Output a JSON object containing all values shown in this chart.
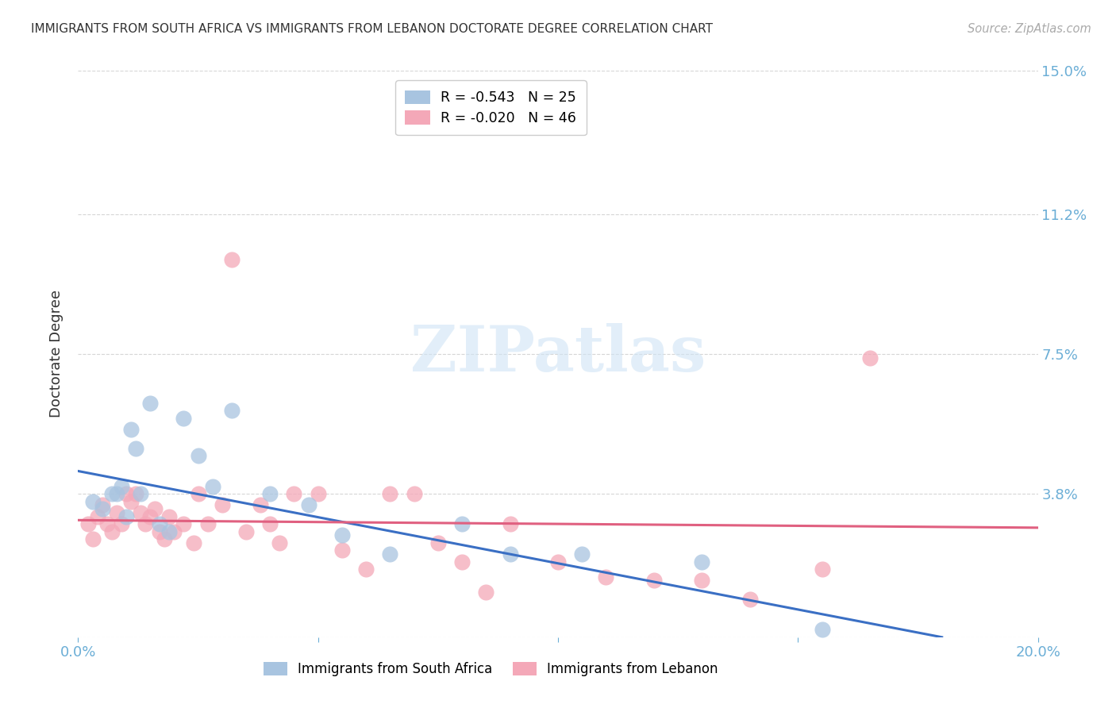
{
  "title": "IMMIGRANTS FROM SOUTH AFRICA VS IMMIGRANTS FROM LEBANON DOCTORATE DEGREE CORRELATION CHART",
  "source": "Source: ZipAtlas.com",
  "ylabel": "Doctorate Degree",
  "xlim": [
    0.0,
    0.2
  ],
  "ylim": [
    0.0,
    0.15
  ],
  "yticks": [
    0.0,
    0.038,
    0.075,
    0.112,
    0.15
  ],
  "ytick_labels": [
    "",
    "3.8%",
    "7.5%",
    "11.2%",
    "15.0%"
  ],
  "xticks": [
    0.0,
    0.05,
    0.1,
    0.15,
    0.2
  ],
  "xtick_labels": [
    "0.0%",
    "",
    "",
    "",
    "20.0%"
  ],
  "south_africa_R": "-0.543",
  "south_africa_N": "25",
  "lebanon_R": "-0.020",
  "lebanon_N": "46",
  "south_africa_color": "#a8c4e0",
  "lebanon_color": "#f4a8b8",
  "south_africa_line_color": "#3a6fc4",
  "lebanon_line_color": "#e06080",
  "background_color": "#ffffff",
  "grid_color": "#cccccc",
  "title_color": "#333333",
  "axis_label_color": "#333333",
  "blue_text_color": "#6baed6",
  "watermark_text": "ZIPatlas",
  "watermark_color": "#d0e4f5",
  "south_africa_x": [
    0.003,
    0.005,
    0.007,
    0.008,
    0.009,
    0.01,
    0.011,
    0.012,
    0.013,
    0.015,
    0.017,
    0.019,
    0.022,
    0.025,
    0.028,
    0.032,
    0.04,
    0.048,
    0.055,
    0.065,
    0.08,
    0.09,
    0.105,
    0.13,
    0.155
  ],
  "south_africa_y": [
    0.036,
    0.034,
    0.038,
    0.038,
    0.04,
    0.032,
    0.055,
    0.05,
    0.038,
    0.062,
    0.03,
    0.028,
    0.058,
    0.048,
    0.04,
    0.06,
    0.038,
    0.035,
    0.027,
    0.022,
    0.03,
    0.022,
    0.022,
    0.02,
    0.002
  ],
  "lebanon_x": [
    0.002,
    0.003,
    0.004,
    0.005,
    0.006,
    0.007,
    0.008,
    0.009,
    0.01,
    0.011,
    0.012,
    0.013,
    0.014,
    0.015,
    0.016,
    0.017,
    0.018,
    0.019,
    0.02,
    0.022,
    0.024,
    0.025,
    0.027,
    0.03,
    0.032,
    0.035,
    0.038,
    0.04,
    0.042,
    0.045,
    0.05,
    0.055,
    0.06,
    0.065,
    0.07,
    0.075,
    0.08,
    0.085,
    0.09,
    0.1,
    0.11,
    0.12,
    0.13,
    0.14,
    0.155,
    0.165
  ],
  "lebanon_y": [
    0.03,
    0.026,
    0.032,
    0.035,
    0.03,
    0.028,
    0.033,
    0.03,
    0.038,
    0.036,
    0.038,
    0.033,
    0.03,
    0.032,
    0.034,
    0.028,
    0.026,
    0.032,
    0.028,
    0.03,
    0.025,
    0.038,
    0.03,
    0.035,
    0.1,
    0.028,
    0.035,
    0.03,
    0.025,
    0.038,
    0.038,
    0.023,
    0.018,
    0.038,
    0.038,
    0.025,
    0.02,
    0.012,
    0.03,
    0.02,
    0.016,
    0.015,
    0.015,
    0.01,
    0.018,
    0.074
  ],
  "sa_line_x0": 0.0,
  "sa_line_y0": 0.044,
  "sa_line_x1": 0.18,
  "sa_line_y1": 0.0,
  "lb_line_x0": 0.0,
  "lb_line_y0": 0.031,
  "lb_line_x1": 0.2,
  "lb_line_y1": 0.029
}
